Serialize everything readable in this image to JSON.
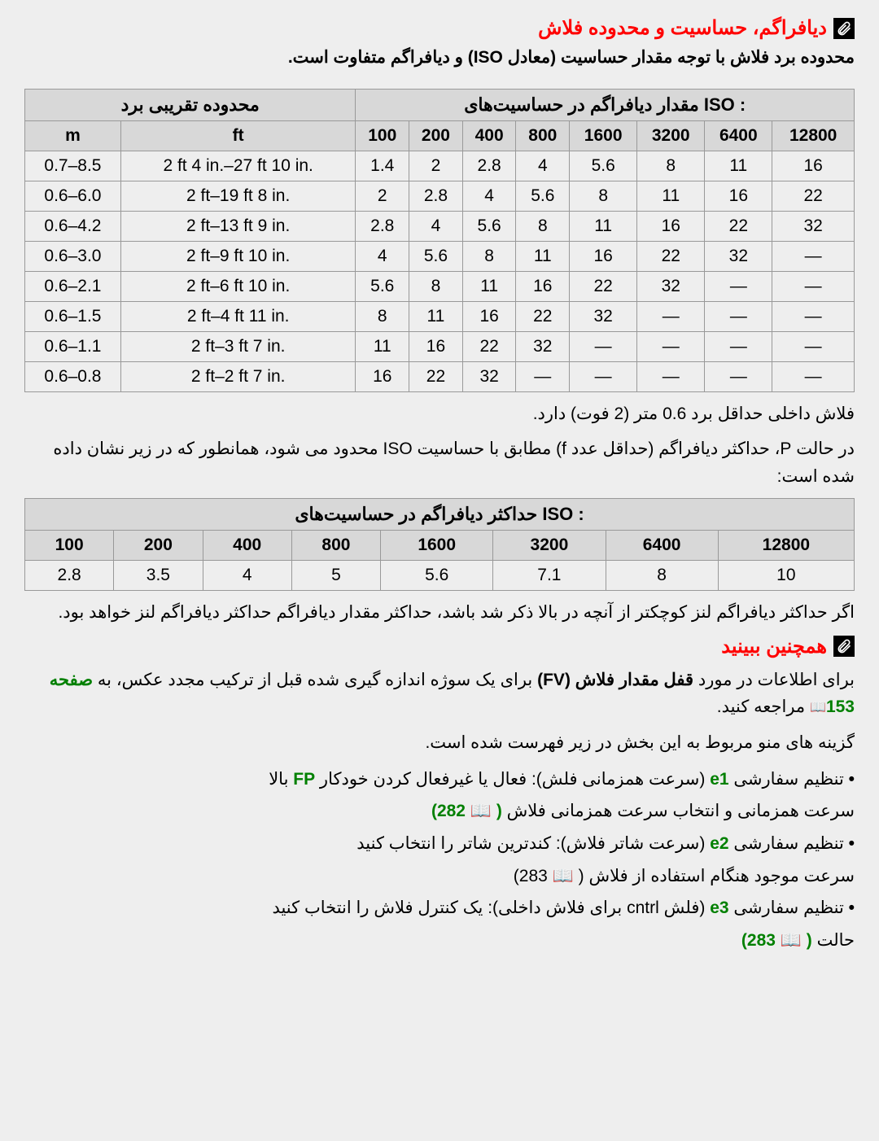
{
  "header1": {
    "title": "دیافراگم، حساسیت و محدوده فلاش",
    "subtitle": "محدوده برد فلاش با توجه مقدار حساسیت (معادل ISO) و دیافراگم متفاوت است."
  },
  "table1": {
    "header_left": "مقدار دیافراگم در حساسیت‌های ISO :",
    "header_right": "محدوده تقریبی برد",
    "iso_cols": [
      "100",
      "200",
      "400",
      "800",
      "1600",
      "3200",
      "6400",
      "12800"
    ],
    "range_cols": [
      "ft",
      "m"
    ],
    "rows": [
      {
        "iso": [
          "1.4",
          "2",
          "2.8",
          "4",
          "5.6",
          "8",
          "11",
          "16"
        ],
        "ft": "2 ft 4 in.–27 ft 10 in.",
        "m": "0.7–8.5"
      },
      {
        "iso": [
          "2",
          "2.8",
          "4",
          "5.6",
          "8",
          "11",
          "16",
          "22"
        ],
        "ft": "2 ft–19 ft 8 in.",
        "m": "0.6–6.0"
      },
      {
        "iso": [
          "2.8",
          "4",
          "5.6",
          "8",
          "11",
          "16",
          "22",
          "32"
        ],
        "ft": "2 ft–13 ft 9 in.",
        "m": "0.6–4.2"
      },
      {
        "iso": [
          "4",
          "5.6",
          "8",
          "11",
          "16",
          "22",
          "32",
          "—"
        ],
        "ft": "2 ft–9 ft 10 in.",
        "m": "0.6–3.0"
      },
      {
        "iso": [
          "5.6",
          "8",
          "11",
          "16",
          "22",
          "32",
          "—",
          "—"
        ],
        "ft": "2 ft–6 ft 10 in.",
        "m": "0.6–2.1"
      },
      {
        "iso": [
          "8",
          "11",
          "16",
          "22",
          "32",
          "—",
          "—",
          "—"
        ],
        "ft": "2 ft–4 ft 11 in.",
        "m": "0.6–1.5"
      },
      {
        "iso": [
          "11",
          "16",
          "22",
          "32",
          "—",
          "—",
          "—",
          "—"
        ],
        "ft": "2 ft–3 ft 7 in.",
        "m": "0.6–1.1"
      },
      {
        "iso": [
          "16",
          "22",
          "32",
          "—",
          "—",
          "—",
          "—",
          "—"
        ],
        "ft": "2 ft–2 ft 7 in.",
        "m": "0.6–0.8"
      }
    ]
  },
  "note1": "فلاش داخلی حداقل برد 0.6 متر (2 فوت) دارد.",
  "note2": "در حالت P، حداکثر دیافراگم (حداقل عدد f) مطابق با حساسیت ISO محدود می شود، همانطور که در زیر نشان داده شده است:",
  "table2": {
    "header": "حداکثر دیافراگم در حساسیت‌های ISO :",
    "cols": [
      "100",
      "200",
      "400",
      "800",
      "1600",
      "3200",
      "6400",
      "12800"
    ],
    "vals": [
      "2.8",
      "3.5",
      "4",
      "5",
      "5.6",
      "7.1",
      "8",
      "10"
    ]
  },
  "note3": "اگر حداکثر دیافراگم لنز کوچکتر از آنچه در بالا ذکر شد باشد، حداکثر مقدار دیافراگم حداکثر دیافراگم لنز خواهد بود.",
  "header2": {
    "title": "همچنین ببینید"
  },
  "p1_pre": "برای اطلاعات در مورد ",
  "p1_bold": "قفل مقدار فلاش (FV)",
  "p1_mid": " برای یک سوژه اندازه گیری شده قبل از ترکیب مجدد عکس، به ",
  "p1_page": "صفحه 153",
  "p1_post": " مراجعه کنید.",
  "p2": "گزینه های منو مربوط به این بخش در زیر فهرست شده است.",
  "bullets": [
    {
      "pre": "تنظیم سفارشی ",
      "code": "e1",
      "mid": " (سرعت همزمانی فلش): فعال یا غیرفعال کردن خودکار ",
      "fp": "FP",
      "post": " بالا",
      "line2_pre": "سرعت همزمانی و انتخاب سرعت همزمانی فلاش ",
      "page": "282"
    },
    {
      "pre": "تنظیم سفارشی ",
      "code": "e2",
      "mid": " (سرعت شاتر فلاش): کندترین شاتر را انتخاب کنید",
      "line2_pre": "سرعت موجود هنگام استفاده از فلاش ",
      "page": "283",
      "green": false
    },
    {
      "pre": "تنظیم سفارشی ",
      "code": "e3",
      "mid": " (فلش cntrl برای فلاش داخلی): یک کنترل فلاش را انتخاب کنید",
      "line2_pre": "حالت ",
      "page": "283"
    }
  ]
}
